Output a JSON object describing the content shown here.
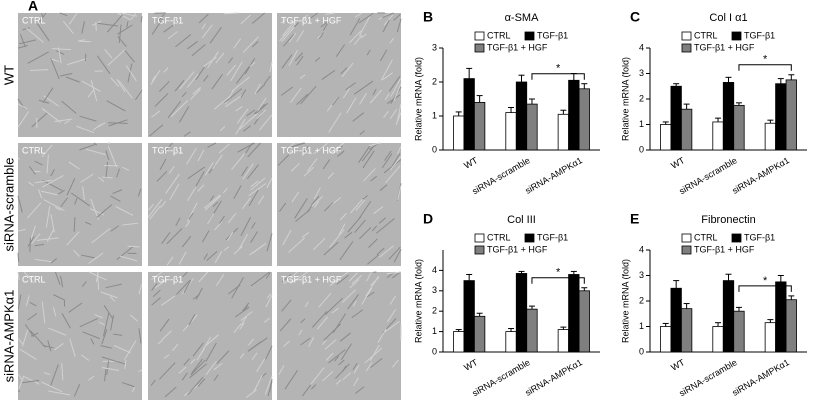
{
  "panel_a": {
    "label": "A",
    "columns": [
      "CTRL",
      "TGF-β1",
      "TGF-β1 + HGF"
    ],
    "rows": [
      "WT",
      "siRNA-scramble",
      "siRNA-AMPKα1"
    ]
  },
  "chart_data": [
    {
      "type": "bar",
      "panel": "B",
      "title": "α-SMA",
      "ylabel": "Relative mRNA (fold)",
      "categories": [
        "WT",
        "siRNA-scramble",
        "siRNA-AMPKα1"
      ],
      "ylim": [
        0,
        3
      ],
      "yticks": [
        0,
        1,
        2,
        3
      ],
      "significance": "*",
      "series": [
        {
          "name": "CTRL",
          "color": "#ffffff",
          "values": [
            1.0,
            1.1,
            1.05
          ],
          "errors": [
            0.12,
            0.15,
            0.12
          ]
        },
        {
          "name": "TGF-β1",
          "color": "#000000",
          "values": [
            2.1,
            2.0,
            2.05
          ],
          "errors": [
            0.3,
            0.2,
            0.2
          ]
        },
        {
          "name": "TGF-β1 + HGF",
          "color": "#7f7f7f",
          "values": [
            1.4,
            1.35,
            1.8
          ],
          "errors": [
            0.2,
            0.15,
            0.15
          ]
        }
      ]
    },
    {
      "type": "bar",
      "panel": "C",
      "title": "Col I α1",
      "ylabel": "Relative mRNA (fold)",
      "categories": [
        "WT",
        "siRNA-scramble",
        "siRNA-AMPKα1"
      ],
      "ylim": [
        0,
        4
      ],
      "yticks": [
        0,
        1,
        2,
        3,
        4
      ],
      "significance": "*",
      "series": [
        {
          "name": "CTRL",
          "color": "#ffffff",
          "values": [
            1.0,
            1.1,
            1.05
          ],
          "errors": [
            0.1,
            0.15,
            0.12
          ]
        },
        {
          "name": "TGF-β1",
          "color": "#000000",
          "values": [
            2.5,
            2.65,
            2.6
          ],
          "errors": [
            0.1,
            0.2,
            0.2
          ]
        },
        {
          "name": "TGF-β1 + HGF",
          "color": "#7f7f7f",
          "values": [
            1.6,
            1.75,
            2.75
          ],
          "errors": [
            0.2,
            0.1,
            0.2
          ]
        }
      ]
    },
    {
      "type": "bar",
      "panel": "D",
      "title": "Col III",
      "ylabel": "Relative mRNA (fold)",
      "categories": [
        "WT",
        "siRNA-scramble",
        "siRNA-AMPKα1"
      ],
      "ylim": [
        0,
        5
      ],
      "yticks": [
        0,
        1,
        2,
        3,
        4
      ],
      "significance": "*",
      "series": [
        {
          "name": "CTRL",
          "color": "#ffffff",
          "values": [
            1.0,
            1.0,
            1.1
          ],
          "errors": [
            0.1,
            0.15,
            0.12
          ]
        },
        {
          "name": "TGF-β1",
          "color": "#000000",
          "values": [
            3.5,
            3.85,
            3.8
          ],
          "errors": [
            0.3,
            0.1,
            0.15
          ]
        },
        {
          "name": "TGF-β1 + HGF",
          "color": "#7f7f7f",
          "values": [
            1.75,
            2.1,
            3.0
          ],
          "errors": [
            0.15,
            0.15,
            0.15
          ]
        }
      ]
    },
    {
      "type": "bar",
      "panel": "E",
      "title": "Fibronectin",
      "ylabel": "Relative mRNA (fold)",
      "categories": [
        "WT",
        "siRNA-scramble",
        "siRNA-AMPKα1"
      ],
      "ylim": [
        0,
        4
      ],
      "yticks": [
        0,
        1,
        2,
        3,
        4
      ],
      "significance": "*",
      "series": [
        {
          "name": "CTRL",
          "color": "#ffffff",
          "values": [
            1.0,
            1.0,
            1.15
          ],
          "errors": [
            0.12,
            0.15,
            0.12
          ]
        },
        {
          "name": "TGF-β1",
          "color": "#000000",
          "values": [
            2.5,
            2.8,
            2.75
          ],
          "errors": [
            0.3,
            0.25,
            0.25
          ]
        },
        {
          "name": "TGF-β1 + HGF",
          "color": "#7f7f7f",
          "values": [
            1.7,
            1.6,
            2.05
          ],
          "errors": [
            0.2,
            0.15,
            0.15
          ]
        }
      ]
    }
  ]
}
